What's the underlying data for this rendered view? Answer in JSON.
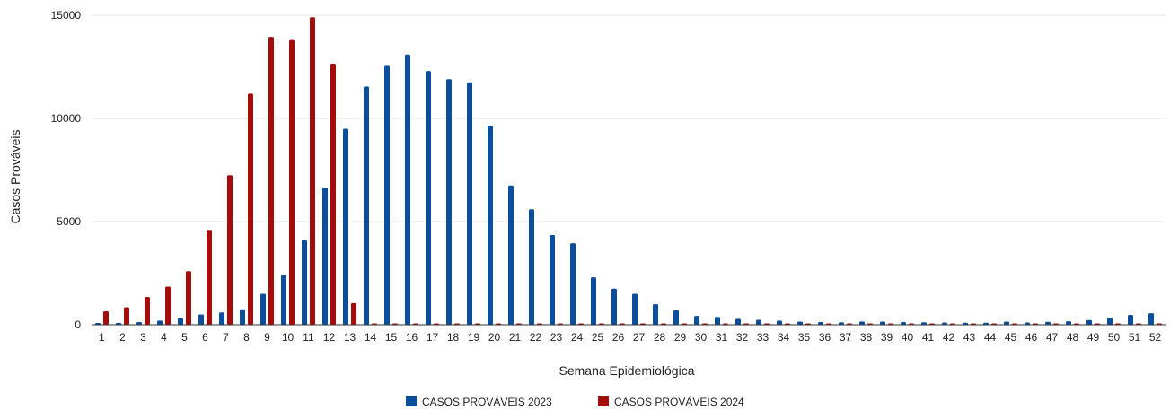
{
  "chart_data": {
    "type": "bar",
    "title": "",
    "xlabel": "Semana Epidemiológica",
    "ylabel": "Casos Prováveis",
    "ylim": [
      0,
      15000
    ],
    "yticks": [
      0,
      5000,
      10000,
      15000
    ],
    "grid": true,
    "legend_position": "bottom",
    "categories": [
      "1",
      "2",
      "3",
      "4",
      "5",
      "6",
      "7",
      "8",
      "9",
      "10",
      "11",
      "12",
      "13",
      "14",
      "15",
      "16",
      "17",
      "18",
      "19",
      "20",
      "21",
      "22",
      "23",
      "24",
      "25",
      "26",
      "27",
      "28",
      "29",
      "30",
      "31",
      "32",
      "33",
      "34",
      "35",
      "36",
      "37",
      "38",
      "39",
      "40",
      "41",
      "42",
      "43",
      "44",
      "45",
      "46",
      "47",
      "48",
      "49",
      "50",
      "51",
      "52"
    ],
    "series": [
      {
        "name": "CASOS PROVÁVEIS 2023",
        "color": "#0b4f9c",
        "values": [
          60,
          90,
          130,
          200,
          330,
          500,
          600,
          750,
          1500,
          2400,
          4100,
          6650,
          9500,
          11550,
          12550,
          13100,
          12300,
          11900,
          11750,
          9650,
          6750,
          5600,
          4350,
          3950,
          2300,
          1750,
          1500,
          1000,
          700,
          430,
          380,
          290,
          240,
          200,
          150,
          130,
          120,
          160,
          150,
          130,
          120,
          110,
          100,
          100,
          150,
          110,
          140,
          170,
          230,
          340,
          480,
          560
        ],
        "labels": []
      },
      {
        "name": "CASOS PROVÁVEIS 2024",
        "color": "#a50d0d",
        "values": [
          650,
          850,
          1350,
          1850,
          2600,
          4600,
          7250,
          11200,
          13950,
          13800,
          14900,
          12650,
          1050,
          0,
          0,
          0,
          0,
          0,
          0,
          0,
          0,
          0,
          0,
          0,
          0,
          0,
          0,
          0,
          0,
          0,
          0,
          0,
          0,
          0,
          0,
          0,
          0,
          0,
          0,
          0,
          0,
          0,
          0,
          0,
          0,
          0,
          0,
          0,
          0,
          0,
          0,
          0
        ]
      }
    ]
  }
}
